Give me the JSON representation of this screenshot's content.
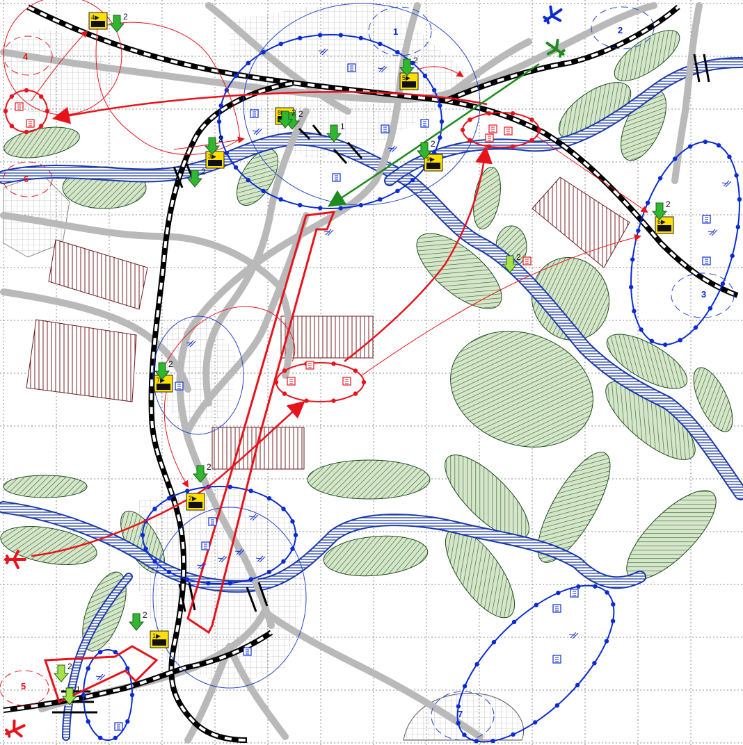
{
  "colors": {
    "friendly": "#0a2bd4",
    "hostile": "#e8121b",
    "green": "#1f8a1f",
    "forest_fill": "#cfe0c2",
    "forest_stroke": "#1d4d1d",
    "road": "#b9b9b9",
    "river": "#1b3aa8",
    "rail": "#000000",
    "grid": "#9a9a9a",
    "marker_bg": "#ffe000"
  },
  "zone_labels": {
    "z1": "1",
    "z2": "2",
    "z3": "3",
    "z4": "4",
    "z5": "5",
    "z6": "6",
    "z7": "7"
  },
  "unit_markers": {
    "m1": "1▶",
    "m2": "2▶",
    "m3": "3▶",
    "m4": "4▶",
    "m5": "5▶",
    "m6": "6▶",
    "m7": "7▶",
    "m8": "8▶",
    "m9": "9▶"
  },
  "drop_counts": {
    "d_a": "2",
    "d_b": "2",
    "d_c": "2",
    "d_d": "2",
    "d_e": "2",
    "d_f": "1",
    "d_g": "2",
    "d_h": "2",
    "d_i": "2",
    "d_j": "2",
    "d_k": "2",
    "d_l": "2",
    "d_m": "2",
    "d_n": "2",
    "d_o": "1"
  },
  "icons": {
    "aircraft_friendly": "plane-icon",
    "aircraft_hostile": "plane-icon",
    "aircraft_green": "plane-icon",
    "unit_box": "unit-box-icon",
    "supply_drop": "drop-arrow-icon"
  }
}
